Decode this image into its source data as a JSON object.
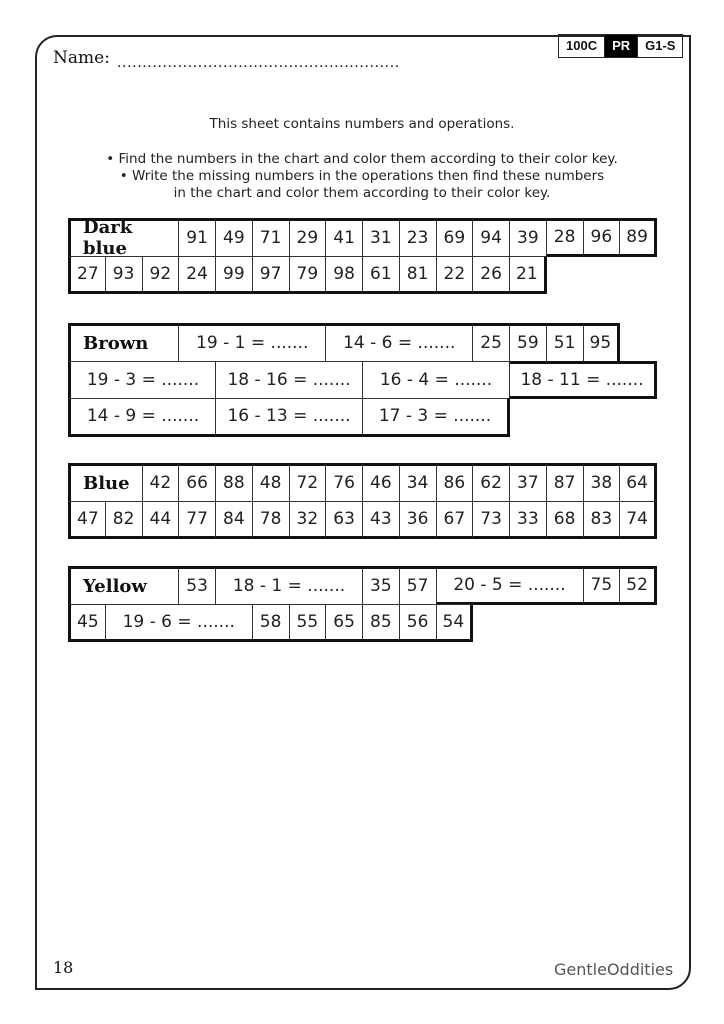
{
  "header": {
    "name_label": "Name:",
    "name_dots": "........................................................",
    "codes": [
      "100C",
      "PR",
      "G1-S"
    ]
  },
  "instructions": [
    "This sheet contains numbers and operations.",
    "• Find the numbers in the chart and color them according to their color key.",
    "• Write the missing numbers in the operations then find these numbers",
    "in the chart and color them according to their color key."
  ],
  "tables": [
    {
      "label": "Dark blue",
      "rows": [
        [
          "91",
          "49",
          "71",
          "29",
          "41",
          "31",
          "23",
          "69",
          "94",
          "39",
          "28",
          "96",
          "89"
        ],
        [
          "27",
          "93",
          "92",
          "24",
          "99",
          "97",
          "79",
          "98",
          "61",
          "81",
          "22",
          "26",
          "21"
        ]
      ]
    },
    {
      "label": "Brown",
      "rows": [
        [
          "19 - 1 = .......",
          "14 - 6 = .......",
          "25",
          "59",
          "51",
          "95"
        ],
        [
          "19 - 3 = .......",
          "18 - 16 = .......",
          "16 - 4 = .......",
          "18 - 11 = ......."
        ],
        [
          "14 - 9 = .......",
          "16 - 13 = .......",
          "17 - 3 = ......."
        ]
      ]
    },
    {
      "label": "Blue",
      "rows": [
        [
          "42",
          "66",
          "88",
          "48",
          "72",
          "76",
          "46",
          "34",
          "86",
          "62",
          "37",
          "87",
          "38",
          "64"
        ],
        [
          "47",
          "82",
          "44",
          "77",
          "84",
          "78",
          "32",
          "63",
          "43",
          "36",
          "67",
          "73",
          "33",
          "68",
          "83",
          "74"
        ]
      ]
    },
    {
      "label": "Yellow",
      "rows": [
        [
          "53",
          "18 - 1 = .......",
          "35",
          "57",
          "20 - 5 = .......",
          "75",
          "52"
        ],
        [
          "45",
          "19 - 6 = .......",
          "58",
          "55",
          "65",
          "85",
          "56",
          "54"
        ]
      ]
    }
  ],
  "footer": {
    "page_number": "18",
    "brand": "GentleOddities"
  }
}
